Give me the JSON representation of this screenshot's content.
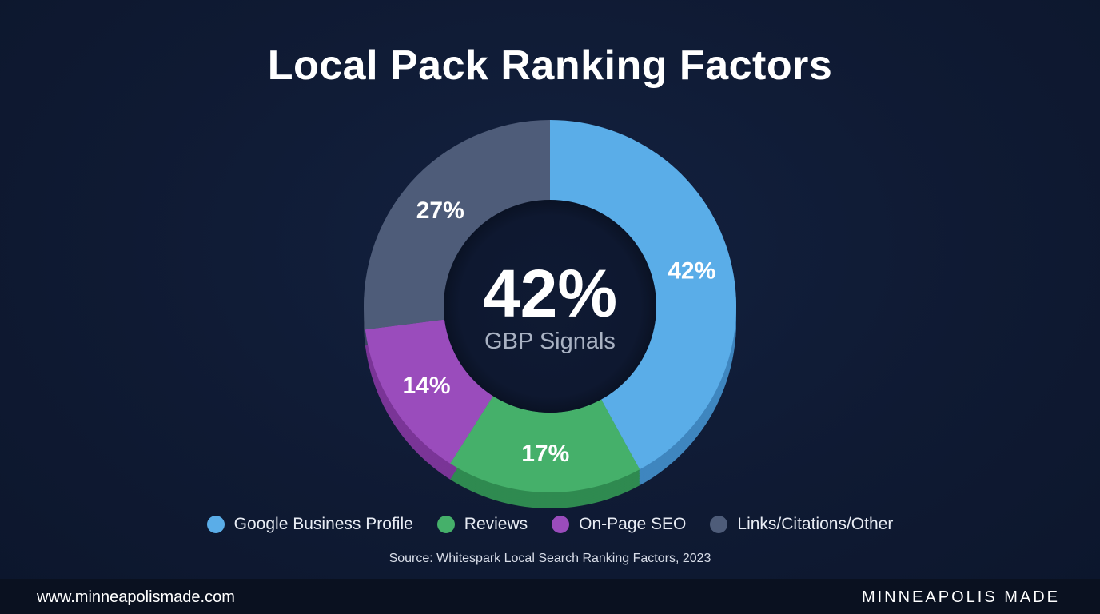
{
  "title": "Local Pack Ranking Factors",
  "center": {
    "value": "42%",
    "label": "GBP Signals"
  },
  "chart_data": {
    "type": "pie",
    "title": "Local Pack Ranking Factors",
    "categories": [
      "Google Business Profile",
      "Reviews",
      "On-Page SEO",
      "Links/Citations/Other"
    ],
    "values": [
      42,
      17,
      14,
      27
    ],
    "labels": [
      "42%",
      "17%",
      "14%",
      "27%"
    ],
    "colors": [
      "#5aade8",
      "#45b06a",
      "#9a4cbc",
      "#4e5c79"
    ],
    "side_colors": [
      "#3f86bf",
      "#2f8a50",
      "#7a3597",
      "#3a4660"
    ],
    "legend_placement": "bottom"
  },
  "legend": [
    {
      "label": "Google Business Profile",
      "color": "#5aade8"
    },
    {
      "label": "Reviews",
      "color": "#45b06a"
    },
    {
      "label": "On-Page SEO",
      "color": "#9a4cbc"
    },
    {
      "label": "Links/Citations/Other",
      "color": "#4e5c79"
    }
  ],
  "source": "Source: Whitespark Local Search Ranking Factors, 2023",
  "footer": {
    "url": "www.minneapolismade.com",
    "brand": "MINNEAPOLIS MADE"
  }
}
